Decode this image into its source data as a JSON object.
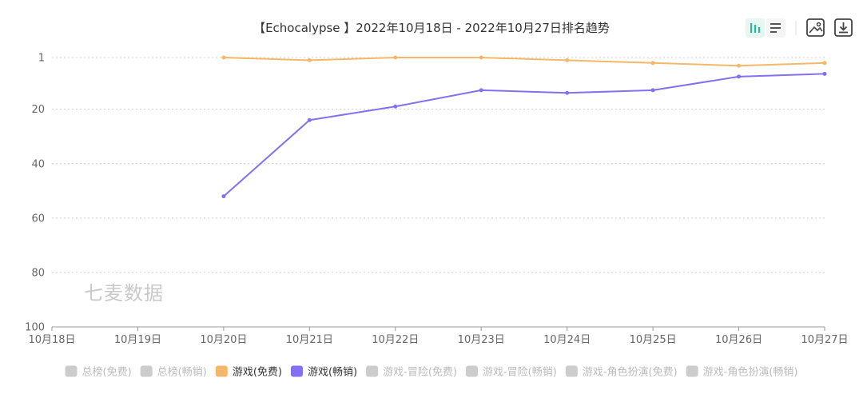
{
  "chart_data": {
    "type": "line",
    "title": "【Echocalypse 】2022年10月18日 - 2022年10月27日排名趋势",
    "x": [
      "10月18日",
      "10月19日",
      "10月20日",
      "10月21日",
      "10月22日",
      "10月23日",
      "10月24日",
      "10月25日",
      "10月26日",
      "10月27日"
    ],
    "y_ticks": [
      1,
      20,
      40,
      60,
      80,
      100
    ],
    "ylim": [
      1,
      100
    ],
    "y_inverted": true,
    "grid": true,
    "legend_position": "bottom",
    "series": [
      {
        "name": "游戏(免费)",
        "color": "#f5b86b",
        "values": [
          null,
          null,
          1,
          2,
          1,
          1,
          2,
          3,
          4,
          3
        ]
      },
      {
        "name": "游戏(畅销)",
        "color": "#8470f0",
        "values": [
          null,
          null,
          52,
          24,
          19,
          13,
          14,
          13,
          8,
          7
        ]
      }
    ],
    "legend": [
      {
        "name": "总榜(免费)",
        "active": false
      },
      {
        "name": "总榜(畅销)",
        "active": false
      },
      {
        "name": "游戏(免费)",
        "active": true,
        "color": "#f5b86b"
      },
      {
        "name": "游戏(畅销)",
        "active": true,
        "color": "#8470f0"
      },
      {
        "name": "游戏-冒险(免费)",
        "active": false
      },
      {
        "name": "游戏-冒险(畅销)",
        "active": false
      },
      {
        "name": "游戏-角色扮演(免费)",
        "active": false
      },
      {
        "name": "游戏-角色扮演(畅销)",
        "active": false
      }
    ]
  },
  "watermark": "七麦数据",
  "toolbar": {
    "bar_icon": "bar-chart-icon",
    "list_icon": "list-icon",
    "image_icon": "image-icon",
    "download_icon": "download-icon",
    "accent": "#26b99a"
  },
  "colors": {
    "inactive": "#cccccc",
    "inactive_text": "#bbbbbb",
    "active_text": "#333333",
    "grid": "#cccccc",
    "axis": "#999999"
  }
}
